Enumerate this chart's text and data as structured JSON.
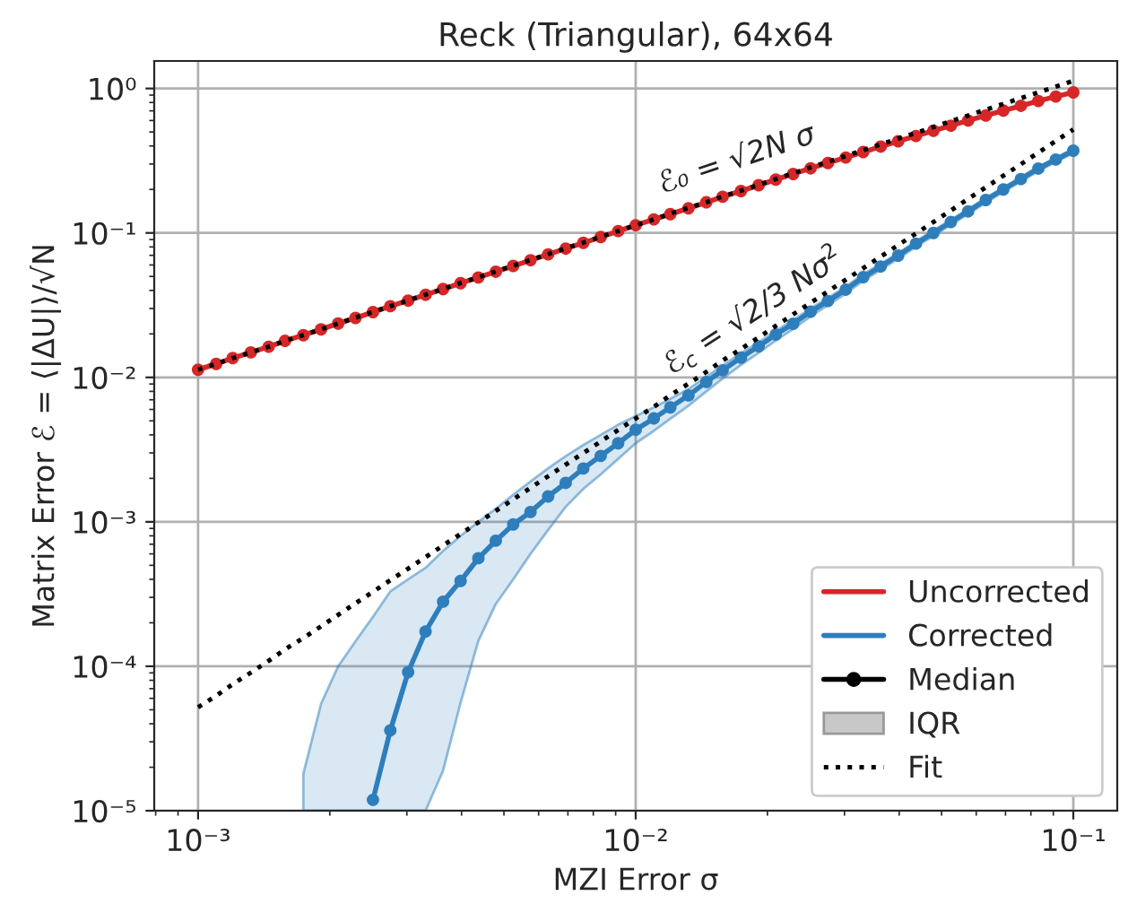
{
  "chart_data": {
    "type": "line",
    "title": "Reck (Triangular), 64x64",
    "xlabel": "MZI Error σ",
    "ylabel": "Matrix Error ℰ = ⟨|ΔU|⟩/√N",
    "x": [
      0.001,
      0.0011,
      0.0012,
      0.00132,
      0.00145,
      0.00158,
      0.00174,
      0.00191,
      0.00209,
      0.00229,
      0.00251,
      0.00275,
      0.00302,
      0.00331,
      0.00363,
      0.00398,
      0.00437,
      0.00479,
      0.00525,
      0.00575,
      0.00631,
      0.00692,
      0.00759,
      0.00832,
      0.00912,
      0.01,
      0.011,
      0.012,
      0.0132,
      0.0145,
      0.0158,
      0.0174,
      0.0191,
      0.0209,
      0.0229,
      0.0251,
      0.0275,
      0.0302,
      0.0331,
      0.0363,
      0.0398,
      0.0437,
      0.0479,
      0.0525,
      0.0575,
      0.0631,
      0.0692,
      0.0759,
      0.0832,
      0.0912,
      0.1
    ],
    "series": [
      {
        "name": "Uncorrected",
        "color": "#d62728",
        "values": [
          0.0113,
          0.0124,
          0.0136,
          0.0149,
          0.0163,
          0.0179,
          0.0196,
          0.0215,
          0.0236,
          0.0258,
          0.0283,
          0.0311,
          0.034,
          0.0373,
          0.0409,
          0.0449,
          0.0492,
          0.0539,
          0.0591,
          0.0648,
          0.0711,
          0.0779,
          0.0854,
          0.0937,
          0.103,
          0.113,
          0.124,
          0.135,
          0.148,
          0.163,
          0.178,
          0.195,
          0.214,
          0.234,
          0.256,
          0.28,
          0.305,
          0.333,
          0.363,
          0.396,
          0.431,
          0.469,
          0.51,
          0.553,
          0.6,
          0.65,
          0.703,
          0.759,
          0.819,
          0.88,
          0.94
        ]
      },
      {
        "name": "Corrected",
        "color": "#2e7ebc",
        "values": [
          null,
          null,
          null,
          null,
          null,
          null,
          null,
          null,
          null,
          null,
          1.19e-05,
          3.6e-05,
          9.1e-05,
          0.000174,
          0.00028,
          0.00039,
          0.00056,
          0.00074,
          0.00096,
          0.00117,
          0.0015,
          0.00186,
          0.00234,
          0.00286,
          0.0035,
          0.00434,
          0.0052,
          0.0062,
          0.0075,
          0.0093,
          0.0112,
          0.0137,
          0.0164,
          0.0198,
          0.0235,
          0.0285,
          0.0338,
          0.0405,
          0.0494,
          0.0586,
          0.0697,
          0.0843,
          0.1,
          0.119,
          0.141,
          0.169,
          0.2,
          0.236,
          0.279,
          0.322,
          0.371
        ],
        "upper": [
          null,
          null,
          null,
          null,
          null,
          null,
          1.8e-05,
          5.5e-05,
          0.0001,
          0.000149,
          0.00022,
          0.00033,
          0.0004,
          0.00048,
          0.00063,
          0.0008,
          0.001,
          0.00123,
          0.00154,
          0.0019,
          0.00235,
          0.00285,
          0.0034,
          0.004,
          0.0047,
          0.0054,
          0.0062,
          0.0071,
          0.0083,
          0.0101,
          0.0121,
          0.0147,
          0.0175,
          0.021,
          0.0249,
          0.03,
          0.0355,
          0.0424,
          0.0516,
          0.0611,
          0.0725,
          0.0876,
          0.104,
          0.123,
          0.146,
          0.175,
          0.207,
          0.244,
          0.288,
          0.332,
          0.382
        ],
        "lower": [
          null,
          null,
          null,
          null,
          null,
          null,
          1e-05,
          1e-05,
          1e-05,
          1e-05,
          1e-05,
          1e-05,
          1e-05,
          1e-05,
          1.9e-05,
          5.6e-05,
          0.00015,
          0.00027,
          0.0004,
          0.0006,
          0.00088,
          0.00127,
          0.00169,
          0.00213,
          0.00273,
          0.0035,
          0.00426,
          0.00517,
          0.00636,
          0.008,
          0.0098,
          0.0122,
          0.0148,
          0.018,
          0.0216,
          0.0264,
          0.0316,
          0.038,
          0.0466,
          0.0555,
          0.0664,
          0.0803,
          0.0952,
          0.114,
          0.135,
          0.1625,
          0.192,
          0.227,
          0.268,
          0.31,
          0.357
        ]
      },
      {
        "name": "Fit",
        "type": "line",
        "color": "#000000",
        "line_style": "dotted",
        "marker": "none",
        "values": [
          0.0113,
          0.0124,
          0.0136,
          0.0149,
          0.0163,
          0.0179,
          0.0196,
          0.0215,
          0.0236,
          0.0259,
          0.0284,
          0.0311,
          0.0341,
          0.0374,
          0.041,
          0.045,
          0.0493,
          0.0541,
          0.0593,
          0.065,
          0.0713,
          0.0782,
          0.0857,
          0.094,
          0.103,
          0.113,
          0.124,
          0.136,
          0.149,
          0.163,
          0.179,
          0.196,
          0.215,
          0.236,
          0.259,
          0.284,
          0.311,
          0.341,
          0.374,
          0.41,
          0.45,
          0.493,
          0.541,
          0.593,
          0.65,
          0.713,
          0.782,
          0.857,
          0.94,
          1.03,
          1.13
        ]
      },
      {
        "type": "line",
        "color": "#000000",
        "line_style": "dotted",
        "marker": "none",
        "values": [
          5.2e-05,
          6.25e-05,
          7.52e-05,
          9.04e-05,
          0.000109,
          0.000131,
          0.000157,
          0.000189,
          0.000227,
          0.000273,
          0.000328,
          0.000394,
          0.000474,
          0.00057,
          0.000686,
          0.000824,
          0.000991,
          0.00119,
          0.00143,
          0.00172,
          0.00207,
          0.00249,
          0.00299,
          0.0036,
          0.00433,
          0.0052,
          0.00625,
          0.00752,
          0.00904,
          0.0109,
          0.0131,
          0.0157,
          0.0189,
          0.0227,
          0.0273,
          0.0328,
          0.0394,
          0.0474,
          0.057,
          0.0686,
          0.0824,
          0.0991,
          0.119,
          0.143,
          0.172,
          0.207,
          0.249,
          0.299,
          0.36,
          0.433,
          0.52
        ]
      }
    ],
    "annotations": [
      "ℰ₀ = √2N σ",
      "ℰ$_{c}$ = √2/3 Nσ$^{2}$",
      "Median",
      "IQR"
    ],
    "marker": "circle",
    "line_style": "solid",
    "log": "xy",
    "grid": true,
    "legend": "bottom right",
    "xlim": [
      0.000794,
      0.126
    ],
    "ylim": [
      1e-05,
      1.55
    ],
    "xticks": [
      {
        "value": 0.001,
        "label": "10⁻³"
      },
      {
        "value": 0.01,
        "label": "10⁻²"
      },
      {
        "value": 0.1,
        "label": "10⁻¹"
      }
    ],
    "yticks": [
      {
        "value": 1e-05,
        "label": "10⁻⁵"
      },
      {
        "value": 0.0001,
        "label": "10⁻⁴"
      },
      {
        "value": 0.001,
        "label": "10⁻³"
      },
      {
        "value": 0.01,
        "label": "10⁻²"
      },
      {
        "value": 0.1,
        "label": "10⁻¹"
      },
      {
        "value": 1,
        "label": "10⁰"
      }
    ]
  }
}
